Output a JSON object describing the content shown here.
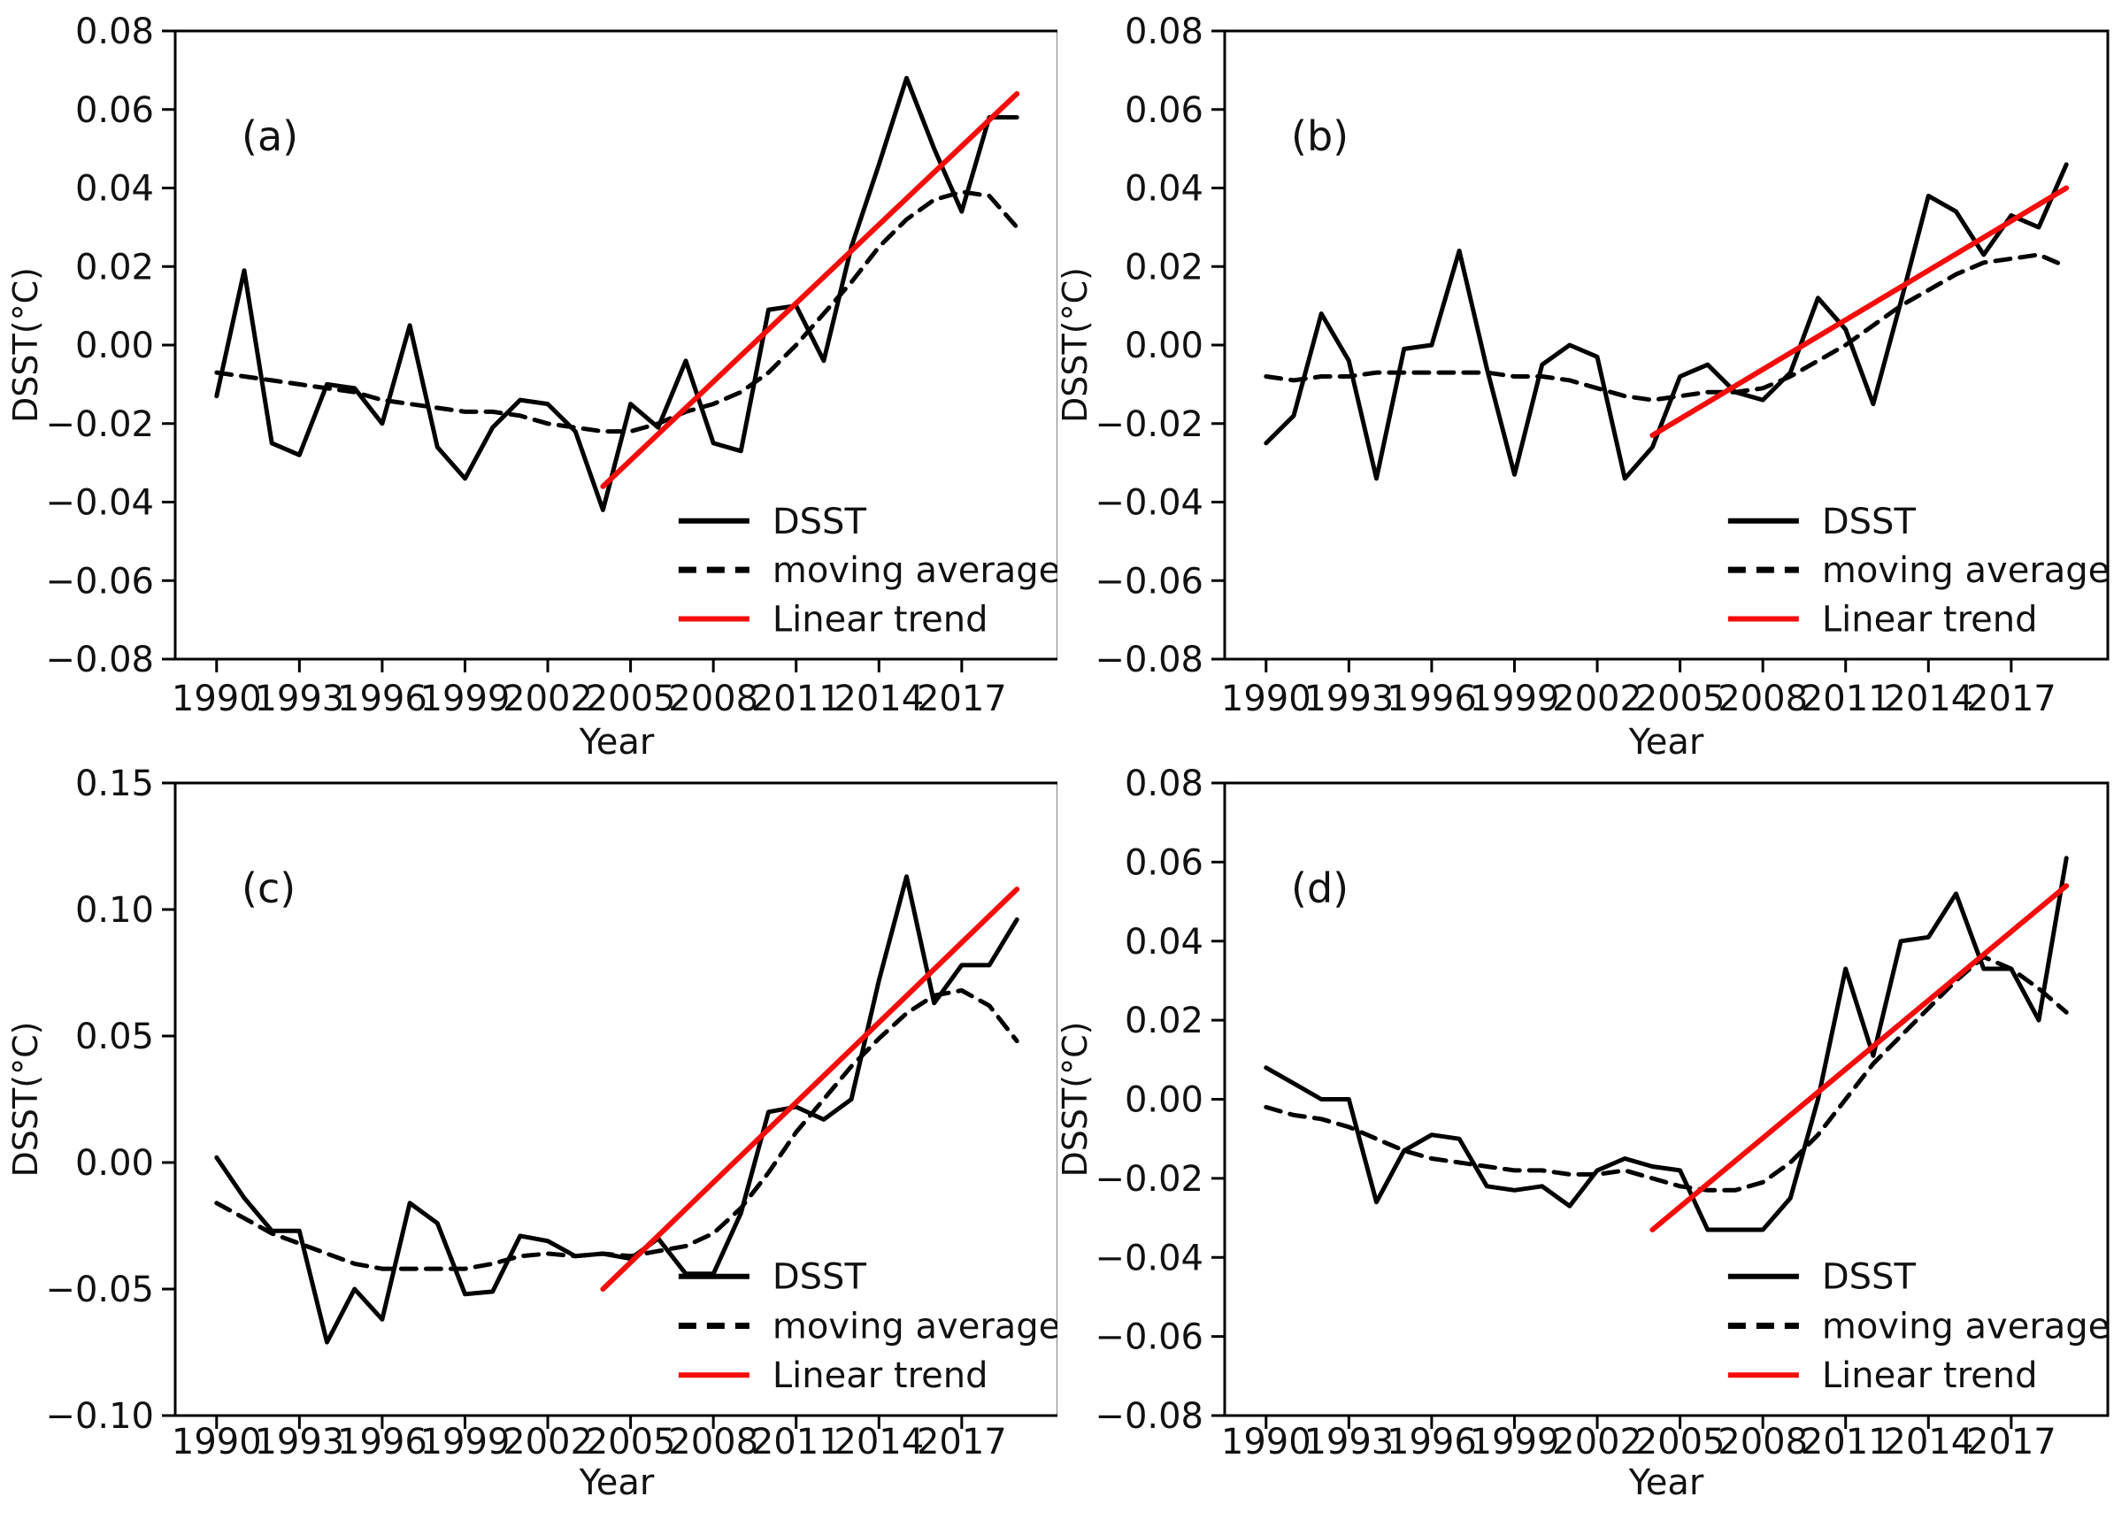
{
  "figure": {
    "xlabel": "Year",
    "ylabel": "DSST(°C)",
    "x_tick_labels": [
      "1990",
      "1993",
      "1996",
      "1999",
      "2002",
      "2005",
      "2008",
      "2011",
      "2014",
      "2017"
    ],
    "x_tick_values": [
      1990,
      1993,
      1996,
      1999,
      2002,
      2005,
      2008,
      2011,
      2014,
      2017
    ],
    "x_range": [
      1988.5,
      2020.5
    ],
    "legend_entries": [
      "DSST",
      "moving average",
      "Linear trend"
    ],
    "colors": {
      "line": "#000000",
      "trend": "#f40c0b",
      "text": "#111111"
    }
  },
  "chart_data": [
    {
      "type": "line",
      "panel_label": "(a)",
      "xlabel": "Year",
      "ylabel": "DSST(°C)",
      "ylim": [
        -0.08,
        0.08
      ],
      "yticks": [
        0.08,
        0.06,
        0.04,
        0.02,
        0.0,
        -0.02,
        -0.04,
        -0.06,
        -0.08
      ],
      "ytick_labels": [
        "0.08",
        "0.06",
        "0.04",
        "0.02",
        "0.00",
        "−0.02",
        "−0.04",
        "−0.06",
        "−0.08"
      ],
      "x": [
        1990,
        1991,
        1992,
        1993,
        1994,
        1995,
        1996,
        1997,
        1998,
        1999,
        2000,
        2001,
        2002,
        2003,
        2004,
        2005,
        2006,
        2007,
        2008,
        2009,
        2010,
        2011,
        2012,
        2013,
        2014,
        2015,
        2016,
        2017,
        2018,
        2019
      ],
      "series": [
        {
          "name": "DSST",
          "style": "solid",
          "color": "#000000",
          "values": [
            -0.013,
            0.019,
            -0.025,
            -0.028,
            -0.01,
            -0.011,
            -0.02,
            0.005,
            -0.026,
            -0.034,
            -0.021,
            -0.014,
            -0.015,
            -0.022,
            -0.042,
            -0.015,
            -0.021,
            -0.004,
            -0.025,
            -0.027,
            0.009,
            0.01,
            -0.004,
            0.025,
            0.046,
            0.068,
            0.05,
            0.034,
            0.058,
            0.058
          ]
        },
        {
          "name": "moving average",
          "style": "dashed",
          "color": "#000000",
          "values": [
            -0.007,
            -0.008,
            -0.009,
            -0.01,
            -0.011,
            -0.012,
            -0.014,
            -0.015,
            -0.016,
            -0.017,
            -0.017,
            -0.018,
            -0.02,
            -0.021,
            -0.022,
            -0.022,
            -0.02,
            -0.017,
            -0.015,
            -0.012,
            -0.007,
            0.0,
            0.008,
            0.016,
            0.025,
            0.032,
            0.037,
            0.039,
            0.038,
            0.03
          ]
        },
        {
          "name": "Linear trend",
          "style": "solid",
          "color": "#f40c0b",
          "x": [
            2004,
            2019
          ],
          "values": [
            -0.036,
            0.064
          ]
        }
      ]
    },
    {
      "type": "line",
      "panel_label": "(b)",
      "xlabel": "Year",
      "ylabel": "DSST(°C)",
      "ylim": [
        -0.08,
        0.08
      ],
      "yticks": [
        0.08,
        0.06,
        0.04,
        0.02,
        0.0,
        -0.02,
        -0.04,
        -0.06,
        -0.08
      ],
      "ytick_labels": [
        "0.08",
        "0.06",
        "0.04",
        "0.02",
        "0.00",
        "−0.02",
        "−0.04",
        "−0.06",
        "−0.08"
      ],
      "x": [
        1990,
        1991,
        1992,
        1993,
        1994,
        1995,
        1996,
        1997,
        1998,
        1999,
        2000,
        2001,
        2002,
        2003,
        2004,
        2005,
        2006,
        2007,
        2008,
        2009,
        2010,
        2011,
        2012,
        2013,
        2014,
        2015,
        2016,
        2017,
        2018,
        2019
      ],
      "series": [
        {
          "name": "DSST",
          "style": "solid",
          "color": "#000000",
          "values": [
            -0.025,
            -0.018,
            0.008,
            -0.004,
            -0.034,
            -0.001,
            0.0,
            0.024,
            -0.006,
            -0.033,
            -0.005,
            0.0,
            -0.003,
            -0.034,
            -0.026,
            -0.008,
            -0.005,
            -0.012,
            -0.014,
            -0.007,
            0.012,
            0.004,
            -0.015,
            0.011,
            0.038,
            0.034,
            0.023,
            0.033,
            0.03,
            0.046
          ]
        },
        {
          "name": "moving average",
          "style": "dashed",
          "color": "#000000",
          "values": [
            -0.008,
            -0.009,
            -0.008,
            -0.008,
            -0.007,
            -0.007,
            -0.007,
            -0.007,
            -0.007,
            -0.008,
            -0.008,
            -0.009,
            -0.011,
            -0.013,
            -0.014,
            -0.013,
            -0.012,
            -0.012,
            -0.011,
            -0.008,
            -0.004,
            0.0,
            0.005,
            0.01,
            0.014,
            0.018,
            0.021,
            0.022,
            0.023,
            0.02
          ]
        },
        {
          "name": "Linear trend",
          "style": "solid",
          "color": "#f40c0b",
          "x": [
            2004,
            2019
          ],
          "values": [
            -0.023,
            0.04
          ]
        }
      ]
    },
    {
      "type": "line",
      "panel_label": "(c)",
      "xlabel": "Year",
      "ylabel": "DSST(°C)",
      "ylim": [
        -0.1,
        0.15
      ],
      "yticks": [
        0.15,
        0.1,
        0.05,
        0.0,
        -0.05,
        -0.1
      ],
      "ytick_labels": [
        "0.15",
        "0.10",
        "0.05",
        "0.00",
        "−0.05",
        "−0.10"
      ],
      "x": [
        1990,
        1991,
        1992,
        1993,
        1994,
        1995,
        1996,
        1997,
        1998,
        1999,
        2000,
        2001,
        2002,
        2003,
        2004,
        2005,
        2006,
        2007,
        2008,
        2009,
        2010,
        2011,
        2012,
        2013,
        2014,
        2015,
        2016,
        2017,
        2018,
        2019
      ],
      "series": [
        {
          "name": "DSST",
          "style": "solid",
          "color": "#000000",
          "values": [
            0.002,
            -0.014,
            -0.027,
            -0.027,
            -0.071,
            -0.05,
            -0.062,
            -0.016,
            -0.024,
            -0.052,
            -0.051,
            -0.029,
            -0.031,
            -0.037,
            -0.036,
            -0.038,
            -0.03,
            -0.044,
            -0.044,
            -0.02,
            0.02,
            0.022,
            0.017,
            0.025,
            0.072,
            0.113,
            0.063,
            0.078,
            0.078,
            0.096
          ]
        },
        {
          "name": "moving average",
          "style": "dashed",
          "color": "#000000",
          "values": [
            -0.016,
            -0.022,
            -0.028,
            -0.032,
            -0.036,
            -0.04,
            -0.042,
            -0.042,
            -0.042,
            -0.042,
            -0.04,
            -0.037,
            -0.036,
            -0.037,
            -0.036,
            -0.037,
            -0.035,
            -0.033,
            -0.028,
            -0.018,
            -0.004,
            0.012,
            0.025,
            0.038,
            0.049,
            0.059,
            0.066,
            0.068,
            0.062,
            0.048
          ]
        },
        {
          "name": "Linear trend",
          "style": "solid",
          "color": "#f40c0b",
          "x": [
            2004,
            2019
          ],
          "values": [
            -0.05,
            0.108
          ]
        }
      ]
    },
    {
      "type": "line",
      "panel_label": "(d)",
      "xlabel": "Year",
      "ylabel": "DSST(°C)",
      "ylim": [
        -0.08,
        0.08
      ],
      "yticks": [
        0.08,
        0.06,
        0.04,
        0.02,
        0.0,
        -0.02,
        -0.04,
        -0.06,
        -0.08
      ],
      "ytick_labels": [
        "0.08",
        "0.06",
        "0.04",
        "0.02",
        "0.00",
        "−0.02",
        "−0.04",
        "−0.06",
        "−0.08"
      ],
      "x": [
        1990,
        1991,
        1992,
        1993,
        1994,
        1995,
        1996,
        1997,
        1998,
        1999,
        2000,
        2001,
        2002,
        2003,
        2004,
        2005,
        2006,
        2007,
        2008,
        2009,
        2010,
        2011,
        2012,
        2013,
        2014,
        2015,
        2016,
        2017,
        2018,
        2019
      ],
      "series": [
        {
          "name": "DSST",
          "style": "solid",
          "color": "#000000",
          "values": [
            0.008,
            0.004,
            0.0,
            0.0,
            -0.026,
            -0.013,
            -0.009,
            -0.01,
            -0.022,
            -0.023,
            -0.022,
            -0.027,
            -0.018,
            -0.015,
            -0.017,
            -0.018,
            -0.033,
            -0.033,
            -0.033,
            -0.025,
            0.0,
            0.033,
            0.011,
            0.04,
            0.041,
            0.052,
            0.033,
            0.033,
            0.02,
            0.061
          ]
        },
        {
          "name": "moving average",
          "style": "dashed",
          "color": "#000000",
          "values": [
            -0.002,
            -0.004,
            -0.005,
            -0.007,
            -0.01,
            -0.013,
            -0.015,
            -0.016,
            -0.017,
            -0.018,
            -0.018,
            -0.019,
            -0.019,
            -0.018,
            -0.02,
            -0.022,
            -0.023,
            -0.023,
            -0.021,
            -0.016,
            -0.009,
            0.0,
            0.009,
            0.016,
            0.023,
            0.03,
            0.036,
            0.033,
            0.028,
            0.022
          ]
        },
        {
          "name": "Linear trend",
          "style": "solid",
          "color": "#f40c0b",
          "x": [
            2004,
            2019
          ],
          "values": [
            -0.033,
            0.054
          ]
        }
      ]
    }
  ]
}
